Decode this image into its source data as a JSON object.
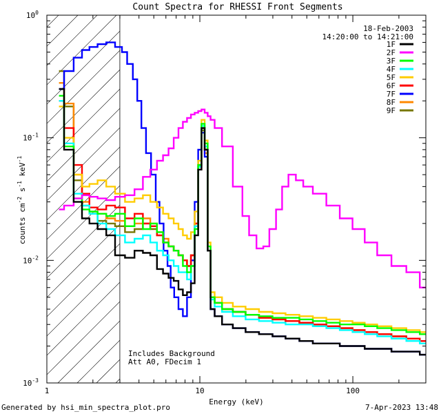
{
  "chart_data": {
    "type": "line",
    "title": "Count Spectra for RHESSI Front Segments",
    "xlabel": "Energy (keV)",
    "ylabel_base": "counts cm",
    "xscale": "log",
    "yscale": "log",
    "xlim": [
      1,
      300
    ],
    "ylim": [
      0.001,
      1
    ],
    "x_ticks": [
      {
        "value": 1,
        "label": "1"
      },
      {
        "value": 10,
        "label": "10"
      },
      {
        "value": 100,
        "label": "100"
      }
    ],
    "y_ticks": [
      {
        "value": 1,
        "mantissa": "10",
        "exp": "0"
      },
      {
        "value": 0.1,
        "mantissa": "10",
        "exp": "-1"
      },
      {
        "value": 0.01,
        "mantissa": "10",
        "exp": "-2"
      },
      {
        "value": 0.001,
        "mantissa": "10",
        "exp": "-3"
      }
    ],
    "annotations": {
      "date": "18-Feb-2003",
      "time_range": "14:20:00 to 14:21:00",
      "background_note": "Includes Background",
      "attenuator_note": "Att A0, FDecim 1",
      "shaded_below_keV": 3
    },
    "series": [
      {
        "name": "1F",
        "color": "#000000",
        "energies": [
          1.2,
          1.4,
          1.6,
          1.8,
          2.0,
          2.3,
          2.6,
          3.0,
          3.5,
          4.0,
          4.5,
          5.0,
          5.5,
          6.0,
          6.5,
          7.0,
          7.5,
          8.0,
          8.5,
          9.0,
          9.5,
          10.0,
          10.5,
          11.0,
          11.5,
          12.0,
          13,
          15,
          18,
          22,
          27,
          33,
          40,
          50,
          60,
          75,
          90,
          110,
          130,
          160,
          200,
          250,
          300
        ],
        "values": [
          0.25,
          0.08,
          0.03,
          0.022,
          0.02,
          0.018,
          0.016,
          0.011,
          0.0105,
          0.012,
          0.0115,
          0.011,
          0.0085,
          0.0078,
          0.0072,
          0.0068,
          0.0058,
          0.0052,
          0.0055,
          0.0065,
          0.016,
          0.055,
          0.12,
          0.08,
          0.012,
          0.004,
          0.0035,
          0.003,
          0.0028,
          0.0026,
          0.0025,
          0.0024,
          0.0023,
          0.0022,
          0.0021,
          0.0021,
          0.002,
          0.002,
          0.0019,
          0.0019,
          0.0018,
          0.0018,
          0.0017
        ]
      },
      {
        "name": "2F",
        "color": "#ff00ff",
        "energies": [
          1.2,
          1.4,
          1.6,
          1.8,
          2.0,
          2.3,
          2.6,
          3.0,
          3.5,
          4.0,
          4.5,
          5.0,
          5.5,
          6.0,
          6.5,
          7.0,
          7.5,
          8.0,
          8.5,
          9.0,
          9.5,
          10.0,
          10.5,
          11.0,
          11.5,
          12.0,
          13,
          15,
          18,
          20,
          22,
          25,
          27,
          30,
          33,
          36,
          40,
          45,
          50,
          60,
          75,
          90,
          110,
          130,
          160,
          200,
          250,
          300
        ],
        "values": [
          0.026,
          0.028,
          0.032,
          0.034,
          0.033,
          0.032,
          0.031,
          0.033,
          0.034,
          0.038,
          0.048,
          0.055,
          0.065,
          0.072,
          0.082,
          0.1,
          0.12,
          0.135,
          0.145,
          0.155,
          0.16,
          0.165,
          0.17,
          0.16,
          0.15,
          0.14,
          0.12,
          0.085,
          0.04,
          0.023,
          0.016,
          0.0125,
          0.013,
          0.018,
          0.026,
          0.04,
          0.05,
          0.045,
          0.04,
          0.035,
          0.028,
          0.022,
          0.018,
          0.014,
          0.011,
          0.009,
          0.008,
          0.006
        ]
      },
      {
        "name": "3F",
        "color": "#00ff00",
        "energies": [
          1.2,
          1.4,
          1.6,
          1.8,
          2.0,
          2.3,
          2.6,
          3.0,
          3.5,
          4.0,
          4.5,
          5.0,
          5.5,
          6.0,
          6.5,
          7.0,
          7.5,
          8.0,
          8.5,
          9.0,
          9.5,
          10.0,
          10.5,
          11.0,
          11.5,
          12.0,
          13,
          15,
          18,
          22,
          27,
          33,
          40,
          50,
          60,
          75,
          90,
          110,
          130,
          160,
          200,
          250,
          300
        ],
        "values": [
          0.22,
          0.085,
          0.032,
          0.026,
          0.025,
          0.024,
          0.023,
          0.024,
          0.019,
          0.022,
          0.018,
          0.02,
          0.017,
          0.014,
          0.013,
          0.012,
          0.011,
          0.009,
          0.008,
          0.009,
          0.018,
          0.06,
          0.13,
          0.09,
          0.013,
          0.005,
          0.0045,
          0.004,
          0.0038,
          0.0036,
          0.0035,
          0.0034,
          0.0034,
          0.0033,
          0.0032,
          0.0031,
          0.003,
          0.003,
          0.0029,
          0.0028,
          0.0027,
          0.0026,
          0.0025
        ]
      },
      {
        "name": "4F",
        "color": "#00ffff",
        "energies": [
          1.2,
          1.4,
          1.6,
          1.8,
          2.0,
          2.3,
          2.6,
          3.0,
          3.5,
          4.0,
          4.5,
          5.0,
          5.5,
          6.0,
          6.5,
          7.0,
          7.5,
          8.0,
          8.5,
          9.0,
          9.5,
          10.0,
          10.5,
          11.0,
          11.5,
          12.0,
          13,
          15,
          18,
          22,
          27,
          33,
          40,
          50,
          60,
          75,
          90,
          110,
          130,
          160,
          200,
          250,
          300
        ],
        "values": [
          0.2,
          0.09,
          0.035,
          0.028,
          0.024,
          0.02,
          0.018,
          0.016,
          0.014,
          0.015,
          0.016,
          0.014,
          0.012,
          0.011,
          0.01,
          0.009,
          0.008,
          0.008,
          0.007,
          0.009,
          0.019,
          0.058,
          0.125,
          0.085,
          0.012,
          0.0048,
          0.0042,
          0.0038,
          0.0035,
          0.0033,
          0.0032,
          0.0031,
          0.003,
          0.003,
          0.0029,
          0.0028,
          0.0027,
          0.0026,
          0.0025,
          0.0024,
          0.0023,
          0.0022,
          0.0021
        ]
      },
      {
        "name": "5F",
        "color": "#ffcc00",
        "energies": [
          1.2,
          1.4,
          1.6,
          1.8,
          2.0,
          2.3,
          2.6,
          3.0,
          3.5,
          4.0,
          4.5,
          5.0,
          5.5,
          6.0,
          6.5,
          7.0,
          7.5,
          8.0,
          8.5,
          9.0,
          9.5,
          10.0,
          10.5,
          11.0,
          11.5,
          12.0,
          13,
          15,
          18,
          22,
          27,
          33,
          40,
          50,
          60,
          75,
          90,
          110,
          130,
          160,
          200,
          250,
          300
        ],
        "values": [
          0.18,
          0.1,
          0.05,
          0.04,
          0.042,
          0.045,
          0.04,
          0.035,
          0.03,
          0.032,
          0.034,
          0.03,
          0.027,
          0.024,
          0.022,
          0.02,
          0.018,
          0.016,
          0.015,
          0.017,
          0.025,
          0.065,
          0.14,
          0.095,
          0.014,
          0.0055,
          0.005,
          0.0045,
          0.0042,
          0.004,
          0.0038,
          0.0037,
          0.0036,
          0.0035,
          0.0034,
          0.0033,
          0.0032,
          0.0031,
          0.003,
          0.0029,
          0.0028,
          0.0027,
          0.0026
        ]
      },
      {
        "name": "6F",
        "color": "#ff0000",
        "energies": [
          1.2,
          1.4,
          1.6,
          1.8,
          2.0,
          2.3,
          2.6,
          3.0,
          3.5,
          4.0,
          4.5,
          5.0,
          5.5,
          6.0,
          6.5,
          7.0,
          7.5,
          8.0,
          8.5,
          9.0,
          9.5,
          10.0,
          10.5,
          11.0,
          11.5,
          12.0,
          13,
          15,
          18,
          22,
          27,
          33,
          40,
          50,
          60,
          75,
          90,
          110,
          130,
          160,
          200,
          250,
          300
        ],
        "values": [
          0.2,
          0.12,
          0.06,
          0.035,
          0.027,
          0.026,
          0.028,
          0.027,
          0.022,
          0.024,
          0.02,
          0.019,
          0.016,
          0.014,
          0.013,
          0.012,
          0.011,
          0.01,
          0.009,
          0.011,
          0.02,
          0.06,
          0.12,
          0.08,
          0.012,
          0.005,
          0.0045,
          0.004,
          0.0038,
          0.0036,
          0.0034,
          0.0033,
          0.0032,
          0.0031,
          0.003,
          0.0029,
          0.0028,
          0.0027,
          0.0026,
          0.0025,
          0.0024,
          0.0023,
          0.0022
        ]
      },
      {
        "name": "7F",
        "color": "#0000ff",
        "energies": [
          1.2,
          1.4,
          1.6,
          1.8,
          2.0,
          2.3,
          2.6,
          3.0,
          3.2,
          3.5,
          3.8,
          4.0,
          4.3,
          4.6,
          5.0,
          5.3,
          5.6,
          6.0,
          6.3,
          6.6,
          7.0,
          7.5,
          8.0,
          8.5,
          9.0,
          9.5,
          10.0,
          10.5,
          11.0,
          11.5,
          12.0,
          13,
          15,
          18,
          22,
          27,
          33,
          40,
          50,
          60,
          75,
          90,
          110,
          130,
          160,
          200,
          250,
          300
        ],
        "values": [
          0.25,
          0.35,
          0.45,
          0.52,
          0.55,
          0.58,
          0.6,
          0.55,
          0.5,
          0.4,
          0.3,
          0.2,
          0.12,
          0.075,
          0.05,
          0.03,
          0.02,
          0.012,
          0.009,
          0.006,
          0.005,
          0.004,
          0.0035,
          0.005,
          0.01,
          0.03,
          0.08,
          0.11,
          0.07,
          0.012,
          0.004,
          0.0035,
          0.003,
          0.0028,
          0.0026,
          0.0025,
          0.0024,
          0.0023,
          0.0022,
          0.0021,
          0.0021,
          0.002,
          0.002,
          0.0019,
          0.0019,
          0.0018,
          0.0018,
          0.0017
        ]
      },
      {
        "name": "8F",
        "color": "#ff8800",
        "energies": [
          1.2,
          1.4,
          1.6,
          1.8,
          2.0,
          2.3,
          2.6,
          3.0,
          3.5,
          4.0,
          4.5,
          5.0,
          5.5,
          6.0,
          6.5,
          7.0,
          7.5,
          8.0,
          8.5,
          9.0,
          9.5,
          10.0,
          10.5,
          11.0,
          11.5,
          12.0,
          13,
          15,
          18,
          22,
          27,
          33,
          40,
          50,
          60,
          75,
          90,
          110,
          130,
          160,
          200,
          250,
          300
        ],
        "values": [
          0.28,
          0.19,
          0.05,
          0.03,
          0.025,
          0.024,
          0.022,
          0.021,
          0.019,
          0.02,
          0.022,
          0.02,
          0.017,
          0.015,
          0.013,
          0.012,
          0.011,
          0.01,
          0.009,
          0.011,
          0.02,
          0.055,
          0.11,
          0.075,
          0.012,
          0.005,
          0.0045,
          0.004,
          0.0038,
          0.0036,
          0.0034,
          0.0033,
          0.0032,
          0.0031,
          0.003,
          0.0029,
          0.0028,
          0.0027,
          0.0026,
          0.0025,
          0.0024,
          0.0023,
          0.0022
        ]
      },
      {
        "name": "9F",
        "color": "#777700",
        "energies": [
          1.2,
          1.4,
          1.6,
          1.8,
          2.0,
          2.3,
          2.6,
          3.0,
          3.5,
          4.0,
          4.5,
          5.0,
          5.5,
          6.0,
          6.5,
          7.0,
          7.5,
          8.0,
          8.5,
          9.0,
          9.5,
          10.0,
          10.5,
          11.0,
          11.5,
          12.0,
          13,
          15,
          18,
          22,
          27,
          33,
          40,
          50,
          60,
          75,
          90,
          110,
          130,
          160,
          200,
          250,
          300
        ],
        "values": [
          0.35,
          0.18,
          0.045,
          0.028,
          0.024,
          0.021,
          0.02,
          0.019,
          0.017,
          0.018,
          0.02,
          0.018,
          0.016,
          0.014,
          0.013,
          0.012,
          0.011,
          0.01,
          0.009,
          0.011,
          0.02,
          0.058,
          0.115,
          0.08,
          0.012,
          0.005,
          0.0045,
          0.004,
          0.0038,
          0.0036,
          0.0034,
          0.0033,
          0.0032,
          0.0031,
          0.003,
          0.0029,
          0.0028,
          0.0027,
          0.0026,
          0.0025,
          0.0024,
          0.0023,
          0.0022
        ]
      }
    ]
  },
  "footer": {
    "generated_by": "Generated by hsi_min_spectra_plot.pro",
    "timestamp": "7-Apr-2023 13:48"
  }
}
